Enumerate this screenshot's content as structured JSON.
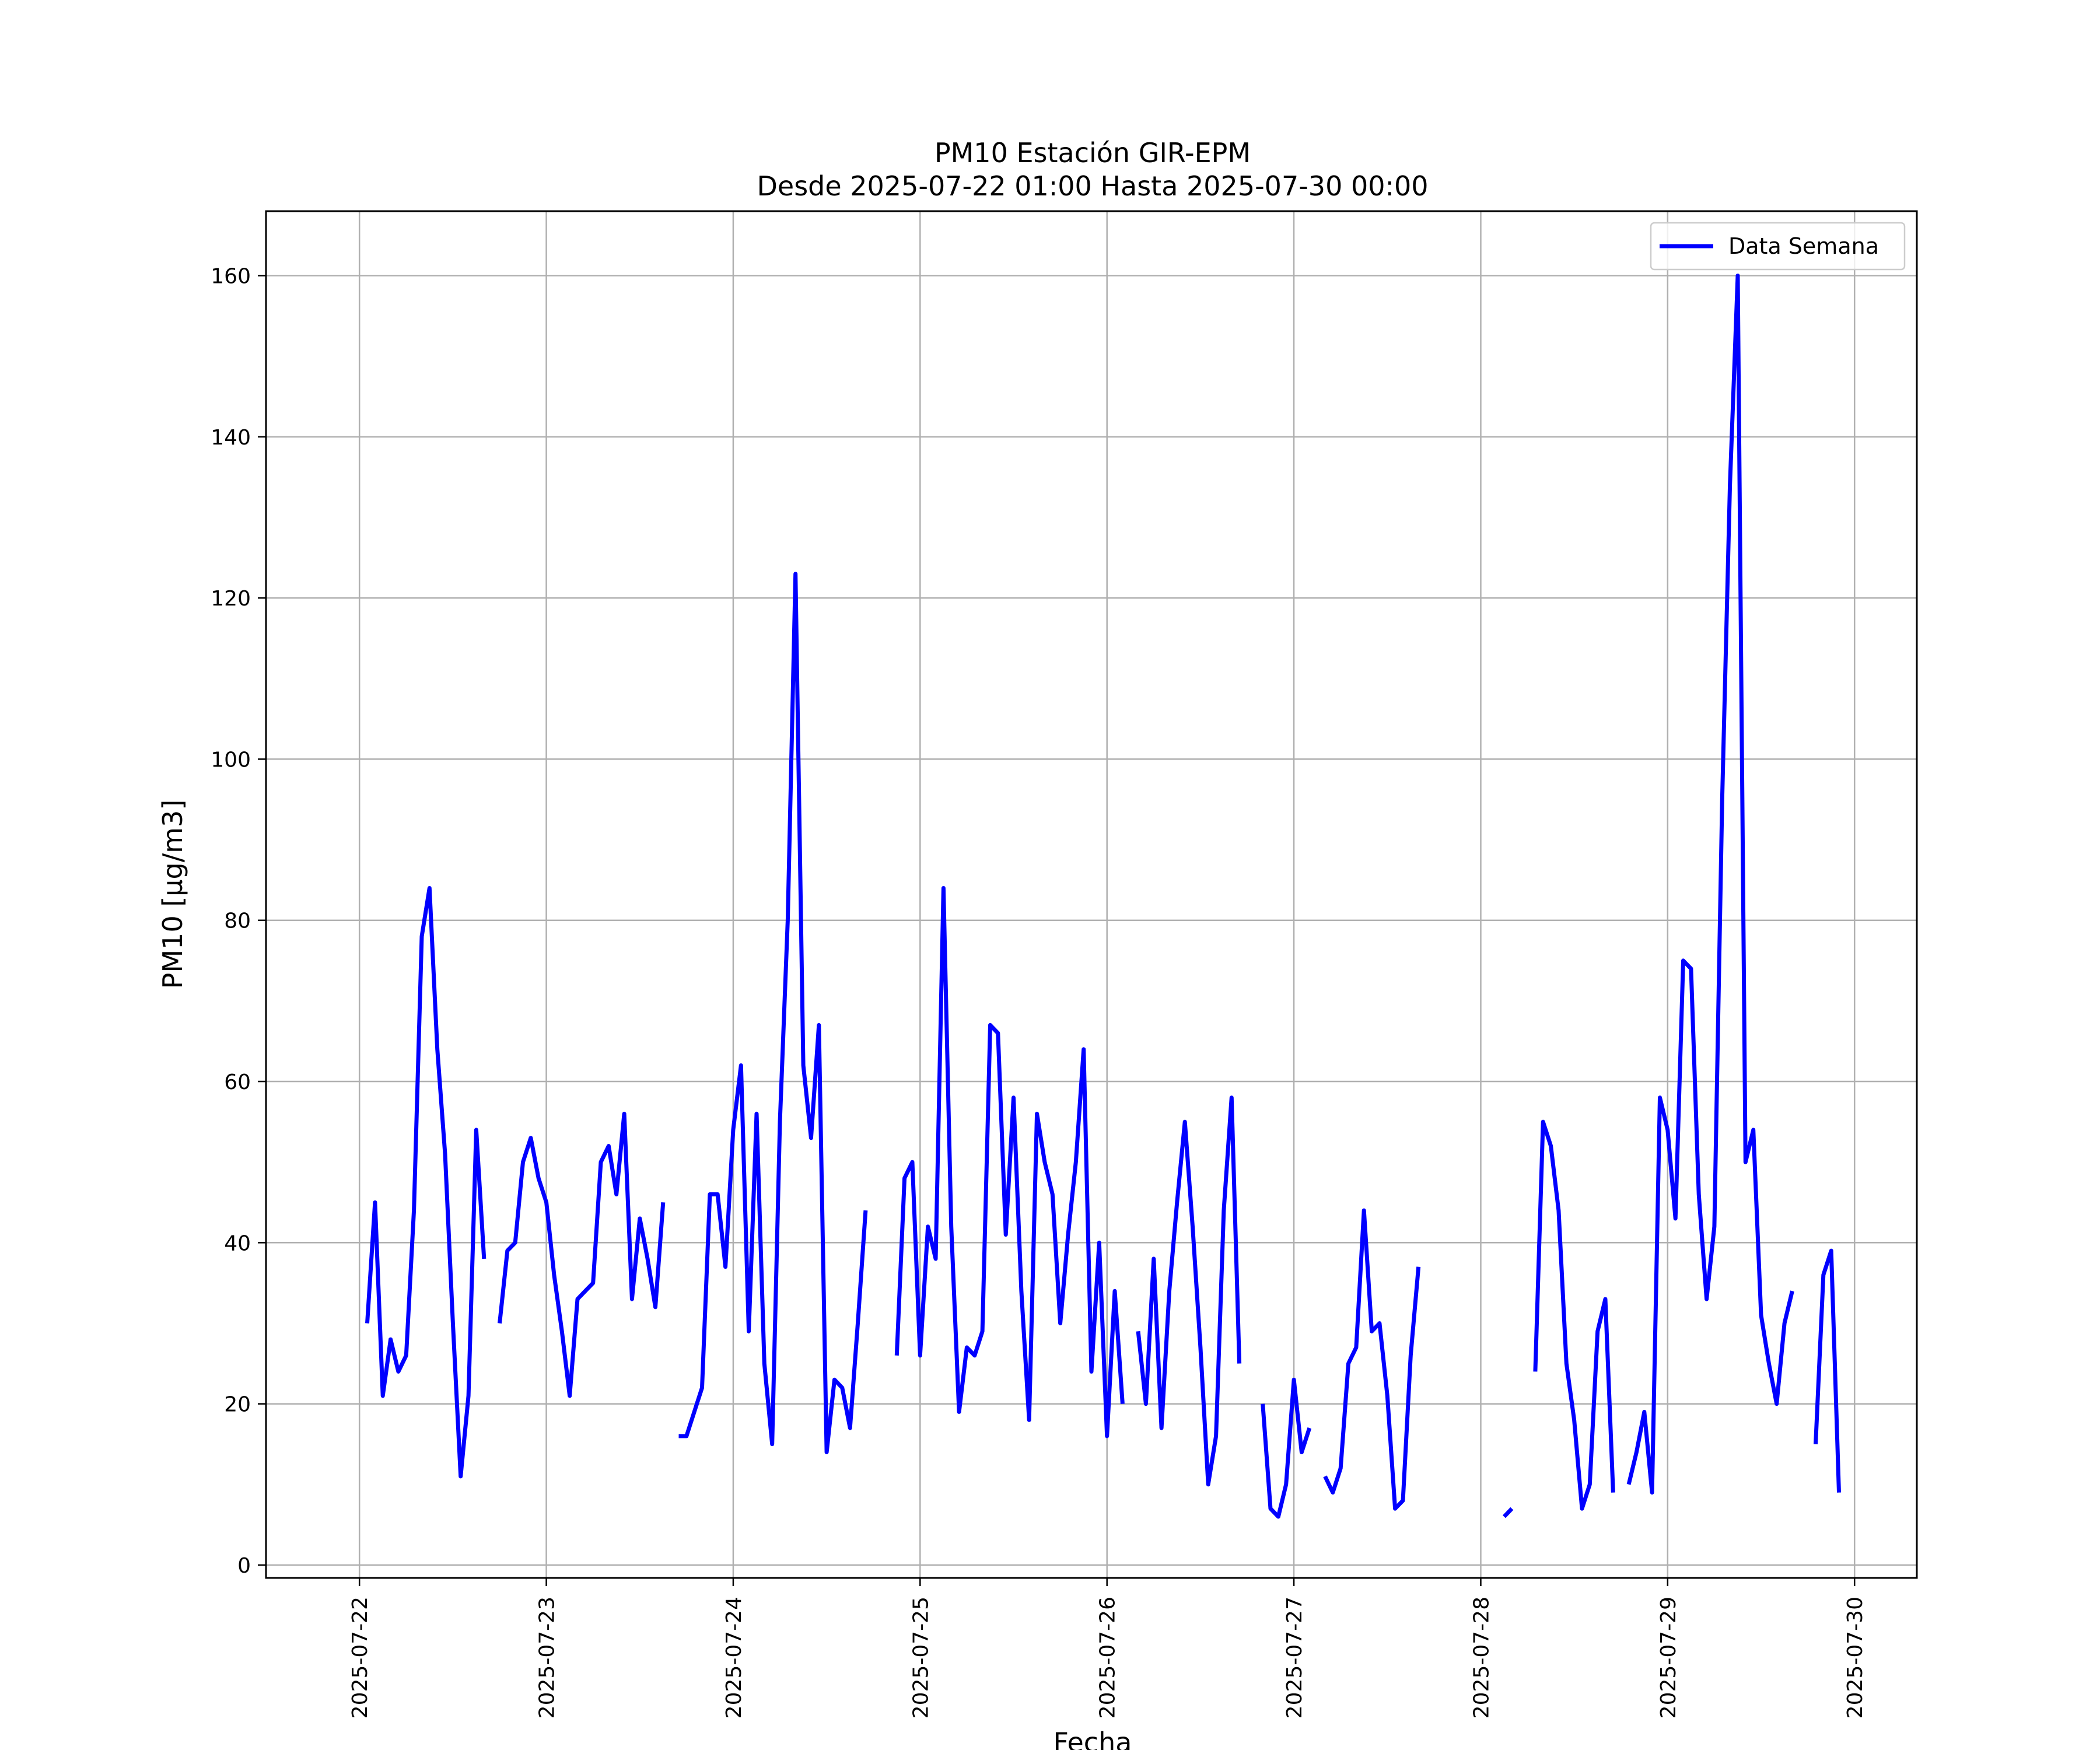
{
  "chart_data": {
    "type": "line",
    "title": "PM10 Estación GIR-EPM",
    "subtitle": "Desde 2025-07-22 01:00 Hasta 2025-07-30 00:00",
    "xlabel": "Fecha",
    "ylabel": "PM10 [µg/m3]",
    "xlim": [
      "2025-07-21 12:00",
      "2025-07-30 08:00"
    ],
    "ylim": [
      -1.6,
      168
    ],
    "x_ticks": [
      "2025-07-22",
      "2025-07-23",
      "2025-07-24",
      "2025-07-25",
      "2025-07-26",
      "2025-07-27",
      "2025-07-28",
      "2025-07-29",
      "2025-07-30"
    ],
    "y_ticks": [
      0,
      20,
      40,
      60,
      80,
      100,
      120,
      140,
      160
    ],
    "grid": true,
    "legend": {
      "position": "top-right",
      "entries": [
        "Data Semana"
      ]
    },
    "series": [
      {
        "name": "Data Semana",
        "color": "#0000ff",
        "segments": [
          [
            [
              "2025-07-22 01:00",
              30
            ],
            [
              "2025-07-22 02:00",
              45
            ],
            [
              "2025-07-22 03:00",
              21
            ],
            [
              "2025-07-22 04:00",
              28
            ],
            [
              "2025-07-22 05:00",
              24
            ],
            [
              "2025-07-22 06:00",
              26
            ],
            [
              "2025-07-22 07:00",
              44
            ],
            [
              "2025-07-22 08:00",
              78
            ],
            [
              "2025-07-22 09:00",
              84
            ],
            [
              "2025-07-22 10:00",
              64
            ],
            [
              "2025-07-22 11:00",
              51
            ],
            [
              "2025-07-22 12:00",
              30
            ],
            [
              "2025-07-22 13:00",
              11
            ],
            [
              "2025-07-22 14:00",
              21
            ],
            [
              "2025-07-22 15:00",
              54
            ],
            [
              "2025-07-22 16:00",
              38
            ]
          ],
          [
            [
              "2025-07-22 18:00",
              30
            ],
            [
              "2025-07-22 19:00",
              39
            ],
            [
              "2025-07-22 20:00",
              40
            ],
            [
              "2025-07-22 21:00",
              50
            ],
            [
              "2025-07-22 22:00",
              53
            ],
            [
              "2025-07-22 23:00",
              48
            ],
            [
              "2025-07-23 00:00",
              45
            ],
            [
              "2025-07-23 01:00",
              36
            ],
            [
              "2025-07-23 02:00",
              29
            ],
            [
              "2025-07-23 03:00",
              21
            ],
            [
              "2025-07-23 04:00",
              33
            ],
            [
              "2025-07-23 05:00",
              34
            ],
            [
              "2025-07-23 06:00",
              35
            ],
            [
              "2025-07-23 07:00",
              50
            ],
            [
              "2025-07-23 08:00",
              52
            ],
            [
              "2025-07-23 09:00",
              46
            ],
            [
              "2025-07-23 10:00",
              56
            ],
            [
              "2025-07-23 11:00",
              33
            ],
            [
              "2025-07-23 12:00",
              43
            ],
            [
              "2025-07-23 13:00",
              38
            ],
            [
              "2025-07-23 14:00",
              32
            ],
            [
              "2025-07-23 15:00",
              45
            ]
          ],
          [
            [
              "2025-07-23 17:00",
              16
            ],
            [
              "2025-07-23 18:00",
              16
            ],
            [
              "2025-07-23 20:00",
              22
            ],
            [
              "2025-07-23 21:00",
              46
            ],
            [
              "2025-07-23 22:00",
              46
            ],
            [
              "2025-07-23 23:00",
              37
            ],
            [
              "2025-07-24 00:00",
              54
            ],
            [
              "2025-07-24 01:00",
              62
            ],
            [
              "2025-07-24 02:00",
              29
            ],
            [
              "2025-07-24 03:00",
              56
            ],
            [
              "2025-07-24 04:00",
              25
            ],
            [
              "2025-07-24 05:00",
              15
            ],
            [
              "2025-07-24 06:00",
              55
            ],
            [
              "2025-07-24 07:00",
              80
            ],
            [
              "2025-07-24 08:00",
              123
            ],
            [
              "2025-07-24 09:00",
              62
            ],
            [
              "2025-07-24 10:00",
              53
            ],
            [
              "2025-07-24 11:00",
              67
            ],
            [
              "2025-07-24 12:00",
              14
            ],
            [
              "2025-07-24 13:00",
              23
            ],
            [
              "2025-07-24 14:00",
              22
            ],
            [
              "2025-07-24 15:00",
              17
            ],
            [
              "2025-07-24 16:00",
              30
            ],
            [
              "2025-07-24 17:00",
              44
            ]
          ],
          [
            [
              "2025-07-24 21:00",
              26
            ],
            [
              "2025-07-24 22:00",
              48
            ],
            [
              "2025-07-24 23:00",
              50
            ],
            [
              "2025-07-25 00:00",
              26
            ],
            [
              "2025-07-25 01:00",
              42
            ],
            [
              "2025-07-25 02:00",
              38
            ],
            [
              "2025-07-25 03:00",
              84
            ],
            [
              "2025-07-25 04:00",
              42
            ],
            [
              "2025-07-25 05:00",
              19
            ],
            [
              "2025-07-25 06:00",
              27
            ],
            [
              "2025-07-25 07:00",
              26
            ],
            [
              "2025-07-25 08:00",
              29
            ],
            [
              "2025-07-25 09:00",
              67
            ],
            [
              "2025-07-25 10:00",
              66
            ],
            [
              "2025-07-25 11:00",
              41
            ],
            [
              "2025-07-25 12:00",
              58
            ],
            [
              "2025-07-25 13:00",
              34
            ],
            [
              "2025-07-25 14:00",
              18
            ],
            [
              "2025-07-25 15:00",
              56
            ],
            [
              "2025-07-25 16:00",
              50
            ],
            [
              "2025-07-25 17:00",
              46
            ],
            [
              "2025-07-25 18:00",
              30
            ],
            [
              "2025-07-25 19:00",
              41
            ],
            [
              "2025-07-25 20:00",
              50
            ],
            [
              "2025-07-25 21:00",
              64
            ],
            [
              "2025-07-25 22:00",
              24
            ],
            [
              "2025-07-25 23:00",
              40
            ],
            [
              "2025-07-26 00:00",
              16
            ],
            [
              "2025-07-26 01:00",
              34
            ],
            [
              "2025-07-26 02:00",
              20
            ]
          ],
          [
            [
              "2025-07-26 04:00",
              29
            ],
            [
              "2025-07-26 05:00",
              20
            ],
            [
              "2025-07-26 06:00",
              38
            ],
            [
              "2025-07-26 07:00",
              17
            ],
            [
              "2025-07-26 08:00",
              34
            ],
            [
              "2025-07-26 09:00",
              45
            ],
            [
              "2025-07-26 10:00",
              55
            ],
            [
              "2025-07-26 11:00",
              42
            ],
            [
              "2025-07-26 12:00",
              27
            ],
            [
              "2025-07-26 13:00",
              10
            ],
            [
              "2025-07-26 14:00",
              16
            ],
            [
              "2025-07-26 15:00",
              44
            ],
            [
              "2025-07-26 16:00",
              58
            ],
            [
              "2025-07-26 17:00",
              25
            ]
          ],
          [
            [
              "2025-07-26 20:00",
              20
            ],
            [
              "2025-07-26 21:00",
              7
            ],
            [
              "2025-07-26 22:00",
              6
            ],
            [
              "2025-07-26 23:00",
              10
            ],
            [
              "2025-07-27 00:00",
              23
            ],
            [
              "2025-07-27 01:00",
              14
            ],
            [
              "2025-07-27 02:00",
              17
            ]
          ],
          [
            [
              "2025-07-27 04:00",
              11
            ],
            [
              "2025-07-27 05:00",
              9
            ],
            [
              "2025-07-27 06:00",
              12
            ],
            [
              "2025-07-27 07:00",
              25
            ],
            [
              "2025-07-27 08:00",
              27
            ],
            [
              "2025-07-27 09:00",
              44
            ],
            [
              "2025-07-27 10:00",
              29
            ],
            [
              "2025-07-27 11:00",
              30
            ],
            [
              "2025-07-27 12:00",
              21
            ],
            [
              "2025-07-27 13:00",
              7
            ],
            [
              "2025-07-27 14:00",
              8
            ],
            [
              "2025-07-27 15:00",
              26
            ],
            [
              "2025-07-27 16:00",
              37
            ]
          ],
          [
            [
              "2025-07-28 03:00",
              6
            ],
            [
              "2025-07-28 04:00",
              7
            ]
          ],
          [
            [
              "2025-07-28 07:00",
              24
            ],
            [
              "2025-07-28 08:00",
              55
            ],
            [
              "2025-07-28 09:00",
              52
            ],
            [
              "2025-07-28 10:00",
              44
            ],
            [
              "2025-07-28 11:00",
              25
            ],
            [
              "2025-07-28 12:00",
              18
            ],
            [
              "2025-07-28 13:00",
              7
            ],
            [
              "2025-07-28 14:00",
              10
            ],
            [
              "2025-07-28 15:00",
              29
            ],
            [
              "2025-07-28 16:00",
              33
            ],
            [
              "2025-07-28 17:00",
              9
            ]
          ],
          [
            [
              "2025-07-28 19:00",
              10
            ],
            [
              "2025-07-28 20:00",
              14
            ],
            [
              "2025-07-28 21:00",
              19
            ],
            [
              "2025-07-28 22:00",
              9
            ],
            [
              "2025-07-28 23:00",
              58
            ],
            [
              "2025-07-29 00:00",
              54
            ],
            [
              "2025-07-29 01:00",
              43
            ],
            [
              "2025-07-29 02:00",
              75
            ],
            [
              "2025-07-29 03:00",
              74
            ],
            [
              "2025-07-29 04:00",
              46
            ],
            [
              "2025-07-29 05:00",
              33
            ],
            [
              "2025-07-29 06:00",
              42
            ],
            [
              "2025-07-29 07:00",
              95
            ],
            [
              "2025-07-29 08:00",
              134
            ],
            [
              "2025-07-29 09:00",
              160
            ],
            [
              "2025-07-29 10:00",
              50
            ],
            [
              "2025-07-29 11:00",
              54
            ],
            [
              "2025-07-29 12:00",
              31
            ],
            [
              "2025-07-29 13:00",
              25
            ],
            [
              "2025-07-29 14:00",
              20
            ],
            [
              "2025-07-29 15:00",
              30
            ],
            [
              "2025-07-29 16:00",
              34
            ]
          ],
          [
            [
              "2025-07-29 19:00",
              15
            ],
            [
              "2025-07-29 20:00",
              36
            ],
            [
              "2025-07-29 21:00",
              39
            ],
            [
              "2025-07-29 22:00",
              9
            ]
          ]
        ]
      }
    ]
  }
}
